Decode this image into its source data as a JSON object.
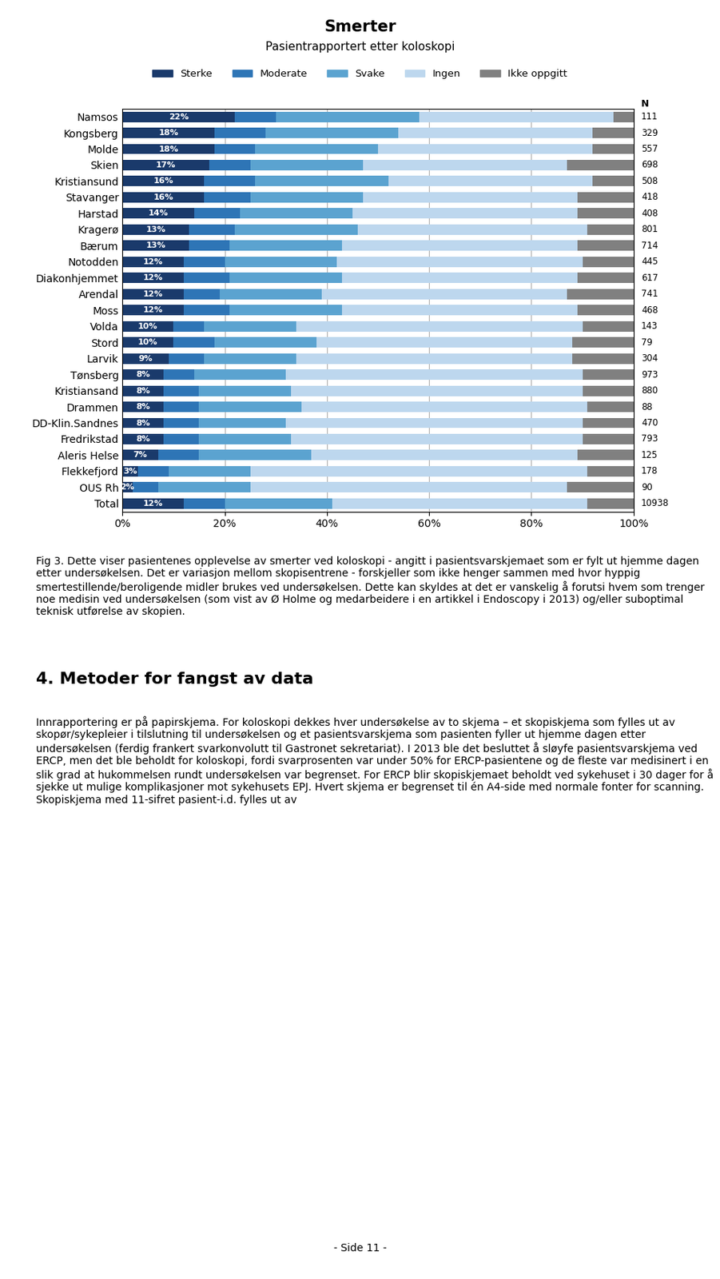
{
  "chart_data": {
    "type": "bar",
    "orientation": "horizontal",
    "stacked": true,
    "title": "Smerter",
    "subtitle": "Pasientrapportert etter koloskopi",
    "categories": [
      "Namsos",
      "Kongsberg",
      "Molde",
      "Skien",
      "Kristiansund",
      "Stavanger",
      "Harstad",
      "Kragerø",
      "Bærum",
      "Notodden",
      "Diakonhjemmet",
      "Arendal",
      "Moss",
      "Volda",
      "Stord",
      "Larvik",
      "Tønsberg",
      "Kristiansand",
      "Drammen",
      "DD-Klin.Sandnes",
      "Fredrikstad",
      "Aleris Helse",
      "Flekkefjord",
      "OUS Rh",
      "Total"
    ],
    "series": [
      {
        "name": "Sterke",
        "color": "#1a3a6b",
        "values": [
          22,
          18,
          18,
          17,
          16,
          16,
          14,
          13,
          13,
          12,
          12,
          12,
          12,
          10,
          10,
          9,
          8,
          8,
          8,
          8,
          8,
          7,
          3,
          2,
          12
        ],
        "value_labels": [
          "22%",
          "18%",
          "18%",
          "17%",
          "16%",
          "16%",
          "14%",
          "13%",
          "13%",
          "12%",
          "12%",
          "12%",
          "12%",
          "10%",
          "10%",
          "9%",
          "8%",
          "8%",
          "8%",
          "8%",
          "8%",
          "7%",
          "3%",
          "2%",
          "12%"
        ]
      },
      {
        "name": "Moderate",
        "color": "#2e75b6",
        "values": [
          8,
          10,
          8,
          8,
          10,
          9,
          9,
          9,
          8,
          8,
          9,
          7,
          9,
          6,
          8,
          7,
          6,
          7,
          7,
          7,
          7,
          8,
          6,
          5,
          8
        ]
      },
      {
        "name": "Svake",
        "color": "#5ba3d0",
        "values": [
          28,
          26,
          24,
          22,
          26,
          22,
          22,
          24,
          22,
          22,
          22,
          20,
          22,
          18,
          20,
          18,
          18,
          18,
          20,
          17,
          18,
          22,
          16,
          18,
          21
        ]
      },
      {
        "name": "Ingen",
        "color": "#bdd7ee",
        "values": [
          38,
          38,
          42,
          40,
          40,
          42,
          44,
          45,
          46,
          48,
          46,
          48,
          46,
          56,
          50,
          54,
          58,
          57,
          56,
          58,
          57,
          52,
          66,
          62,
          50
        ]
      },
      {
        "name": "Ikke oppgitt",
        "color": "#808080",
        "values": [
          4,
          8,
          8,
          13,
          8,
          11,
          11,
          9,
          11,
          10,
          11,
          13,
          11,
          10,
          12,
          12,
          10,
          10,
          9,
          10,
          10,
          11,
          9,
          13,
          9
        ]
      }
    ],
    "data_labels": true,
    "xlim": [
      0,
      100
    ],
    "xticks": [
      {
        "value": 0,
        "label": "0%"
      },
      {
        "value": 20,
        "label": "20%"
      },
      {
        "value": 40,
        "label": "40%"
      },
      {
        "value": 60,
        "label": "60%"
      },
      {
        "value": 80,
        "label": "80%"
      },
      {
        "value": 100,
        "label": "100%"
      }
    ],
    "grid": true,
    "legend": "upper center",
    "n_title": "N",
    "n": [
      111,
      329,
      557,
      698,
      508,
      418,
      408,
      801,
      714,
      445,
      617,
      741,
      468,
      143,
      79,
      304,
      973,
      880,
      88,
      470,
      793,
      125,
      178,
      90,
      10938
    ],
    "annotations": [
      "Fig 3. Dette viser pasientenes opplevelse av smerter ved koloskopi - angitt i pasientsvarskjemaet som er fylt ut hjemme dagen etter undersøkelsen. Det er variasjon mellom skopisentrene - forskjeller som ikke henger sammen med hvor hyppig smertestillende/beroligende midler brukes ved undersøkelsen. Dette kan skyldes at det er vanskelig å forutsi hvem som trenger noe medisin ved undersøkelsen (som vist av Ø Holme og medarbeidere i en artikkel i Endoscopy i 2013) og/eller suboptimal teknisk utførelse av skopien.",
      "4. Metoder for fangst av data",
      "Innrapportering er på papirskjema. For koloskopi dekkes hver undersøkelse av to skjema – et skopiskjema som fylles ut av skopør/sykepleier i tilslutning til undersøkelsen og et pasientsvarskjema som pasienten fyller ut hjemme dagen etter undersøkelsen (ferdig frankert svarkonvolutt til Gastronet sekretariat). I 2013 ble det besluttet å sløyfe pasientsvarskjema ved ERCP, men det ble beholdt for koloskopi, fordi svarprosenten var under 50% for ERCP-pasientene og de fleste var medisinert i en slik grad at hukommelsen rundt undersøkelsen var begrenset. For ERCP blir skopiskjemaet beholdt ved sykehuset i 30 dager for å sjekke ut mulige komplikasjoner mot sykehusets EPJ. Hvert skjema er begrenset til én A4-side med normale fonter for scanning. Skopiskjema med 11-sifret pasient-i.d. fylles ut av",
      "- Side 11 -"
    ]
  }
}
